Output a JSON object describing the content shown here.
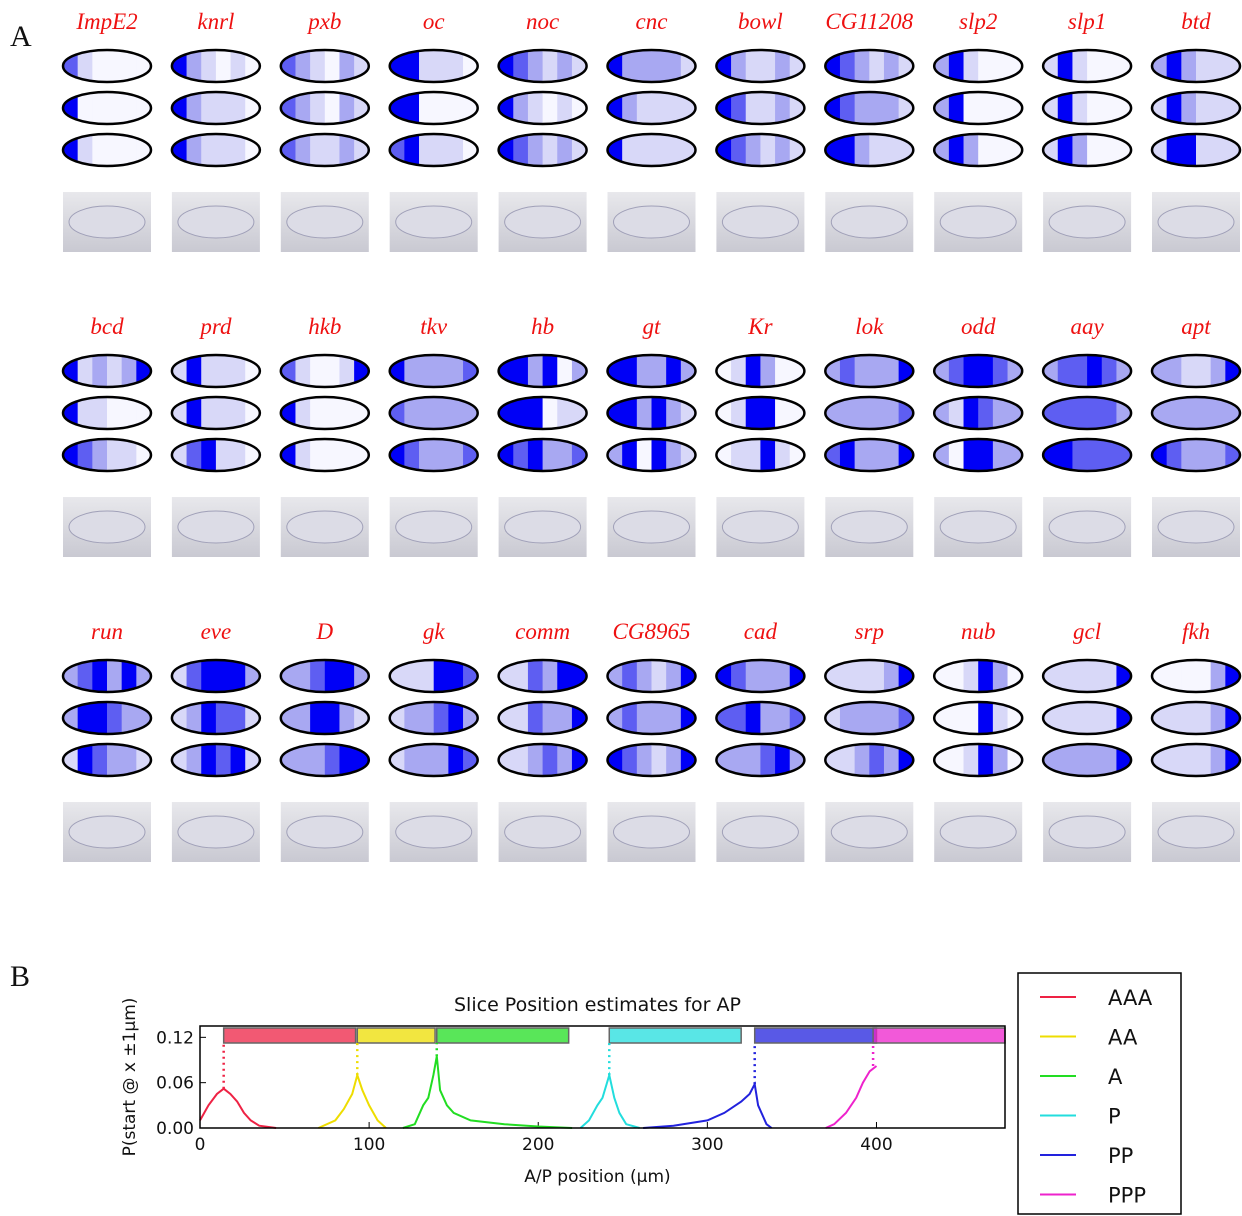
{
  "chart_data": [
    {
      "type": "embryo-grid",
      "label": "A",
      "genes": [
        {
          "name": "ImpE2",
          "slices": [
            [
              3,
              1,
              0,
              0,
              0,
              0
            ],
            [
              4,
              0,
              0,
              0,
              0,
              0
            ],
            [
              4,
              1,
              0,
              0,
              0,
              0
            ]
          ]
        },
        {
          "name": "knrl",
          "slices": [
            [
              4,
              2,
              1,
              0,
              1,
              0
            ],
            [
              4,
              2,
              1,
              1,
              1,
              0
            ],
            [
              4,
              2,
              1,
              1,
              1,
              0
            ]
          ]
        },
        {
          "name": "pxb",
          "slices": [
            [
              3,
              2,
              1,
              0,
              2,
              1
            ],
            [
              3,
              2,
              1,
              0,
              2,
              1
            ],
            [
              3,
              2,
              1,
              1,
              2,
              1
            ]
          ]
        },
        {
          "name": "oc",
          "slices": [
            [
              4,
              4,
              1,
              1,
              1,
              0
            ],
            [
              4,
              4,
              0,
              0,
              0,
              0
            ],
            [
              3,
              4,
              1,
              1,
              1,
              0
            ]
          ]
        },
        {
          "name": "noc",
          "slices": [
            [
              4,
              3,
              2,
              1,
              2,
              1
            ],
            [
              4,
              2,
              1,
              0,
              1,
              0
            ],
            [
              4,
              3,
              2,
              1,
              2,
              1
            ]
          ]
        },
        {
          "name": "cnc",
          "slices": [
            [
              4,
              2,
              2,
              2,
              2,
              1
            ],
            [
              4,
              2,
              1,
              1,
              1,
              1
            ],
            [
              4,
              1,
              1,
              1,
              1,
              1
            ]
          ]
        },
        {
          "name": "bowl",
          "slices": [
            [
              4,
              2,
              1,
              1,
              2,
              1
            ],
            [
              4,
              3,
              1,
              1,
              2,
              1
            ],
            [
              4,
              3,
              2,
              1,
              2,
              1
            ]
          ]
        },
        {
          "name": "CG11208",
          "slices": [
            [
              4,
              3,
              2,
              1,
              2,
              1
            ],
            [
              4,
              3,
              2,
              2,
              2,
              1
            ],
            [
              4,
              4,
              2,
              1,
              1,
              1
            ]
          ]
        },
        {
          "name": "slp2",
          "slices": [
            [
              2,
              4,
              1,
              0,
              0,
              0
            ],
            [
              2,
              4,
              0,
              0,
              0,
              0
            ],
            [
              2,
              4,
              2,
              0,
              0,
              0
            ]
          ]
        },
        {
          "name": "slp1",
          "slices": [
            [
              1,
              4,
              1,
              0,
              0,
              0
            ],
            [
              1,
              4,
              1,
              0,
              0,
              0
            ],
            [
              1,
              4,
              2,
              0,
              0,
              0
            ]
          ]
        },
        {
          "name": "btd",
          "slices": [
            [
              2,
              4,
              2,
              1,
              1,
              1
            ],
            [
              1,
              4,
              2,
              1,
              1,
              1
            ],
            [
              1,
              4,
              4,
              1,
              1,
              1
            ]
          ]
        },
        {
          "name": "bcd",
          "slices": [
            [
              4,
              1,
              2,
              1,
              2,
              4
            ],
            [
              4,
              1,
              1,
              0,
              0,
              0
            ],
            [
              4,
              3,
              2,
              1,
              1,
              0
            ]
          ]
        },
        {
          "name": "prd",
          "slices": [
            [
              1,
              4,
              1,
              1,
              1,
              0
            ],
            [
              1,
              4,
              1,
              1,
              1,
              0
            ],
            [
              1,
              3,
              4,
              1,
              1,
              0
            ]
          ]
        },
        {
          "name": "hkb",
          "slices": [
            [
              3,
              1,
              0,
              0,
              1,
              4
            ],
            [
              4,
              1,
              0,
              0,
              0,
              0
            ],
            [
              4,
              1,
              0,
              0,
              0,
              0
            ]
          ]
        },
        {
          "name": "tkv",
          "slices": [
            [
              4,
              2,
              2,
              2,
              2,
              3
            ],
            [
              3,
              2,
              2,
              2,
              2,
              2
            ],
            [
              4,
              3,
              2,
              2,
              2,
              3
            ]
          ]
        },
        {
          "name": "hb",
          "slices": [
            [
              4,
              4,
              2,
              4,
              0,
              2
            ],
            [
              4,
              4,
              4,
              0,
              1,
              1
            ],
            [
              4,
              3,
              4,
              2,
              2,
              3
            ]
          ]
        },
        {
          "name": "gt",
          "slices": [
            [
              4,
              4,
              2,
              2,
              4,
              2
            ],
            [
              4,
              4,
              2,
              4,
              2,
              1
            ],
            [
              2,
              4,
              0,
              4,
              2,
              1
            ]
          ]
        },
        {
          "name": "Kr",
          "slices": [
            [
              0,
              1,
              4,
              2,
              0,
              0
            ],
            [
              0,
              1,
              4,
              4,
              0,
              0
            ],
            [
              0,
              1,
              1,
              4,
              1,
              0
            ]
          ]
        },
        {
          "name": "lok",
          "slices": [
            [
              2,
              3,
              2,
              2,
              2,
              4
            ],
            [
              2,
              2,
              2,
              2,
              2,
              3
            ],
            [
              3,
              4,
              2,
              2,
              2,
              4
            ]
          ]
        },
        {
          "name": "odd",
          "slices": [
            [
              2,
              3,
              4,
              4,
              3,
              2
            ],
            [
              2,
              1,
              4,
              3,
              2,
              2
            ],
            [
              2,
              0,
              4,
              4,
              2,
              2
            ]
          ]
        },
        {
          "name": "aay",
          "slices": [
            [
              2,
              3,
              3,
              4,
              3,
              2
            ],
            [
              3,
              3,
              3,
              3,
              3,
              2
            ],
            [
              4,
              4,
              3,
              3,
              3,
              3
            ]
          ]
        },
        {
          "name": "apt",
          "slices": [
            [
              2,
              2,
              1,
              1,
              2,
              4
            ],
            [
              2,
              2,
              2,
              2,
              2,
              2
            ],
            [
              4,
              3,
              2,
              2,
              2,
              3
            ]
          ]
        },
        {
          "name": "run",
          "slices": [
            [
              2,
              3,
              4,
              2,
              4,
              2
            ],
            [
              2,
              4,
              4,
              3,
              2,
              2
            ],
            [
              1,
              4,
              3,
              2,
              2,
              1
            ]
          ]
        },
        {
          "name": "eve",
          "slices": [
            [
              1,
              3,
              4,
              4,
              4,
              2
            ],
            [
              1,
              2,
              4,
              3,
              3,
              1
            ],
            [
              1,
              2,
              4,
              3,
              4,
              1
            ]
          ]
        },
        {
          "name": "D",
          "slices": [
            [
              2,
              2,
              3,
              4,
              4,
              2
            ],
            [
              2,
              2,
              4,
              4,
              2,
              1
            ],
            [
              2,
              2,
              2,
              3,
              4,
              4
            ]
          ]
        },
        {
          "name": "gk",
          "slices": [
            [
              1,
              1,
              1,
              4,
              4,
              3
            ],
            [
              1,
              2,
              2,
              3,
              4,
              2
            ],
            [
              1,
              2,
              2,
              2,
              4,
              3
            ]
          ]
        },
        {
          "name": "comm",
          "slices": [
            [
              1,
              1,
              3,
              2,
              4,
              4
            ],
            [
              1,
              1,
              3,
              2,
              2,
              4
            ],
            [
              1,
              1,
              2,
              3,
              2,
              4
            ]
          ]
        },
        {
          "name": "CG8965",
          "slices": [
            [
              2,
              3,
              2,
              1,
              2,
              4
            ],
            [
              2,
              3,
              2,
              2,
              2,
              4
            ],
            [
              4,
              3,
              2,
              1,
              2,
              4
            ]
          ]
        },
        {
          "name": "cad",
          "slices": [
            [
              4,
              3,
              2,
              2,
              2,
              4
            ],
            [
              3,
              3,
              4,
              2,
              2,
              3
            ],
            [
              2,
              2,
              2,
              3,
              4,
              2
            ]
          ]
        },
        {
          "name": "srp",
          "slices": [
            [
              1,
              1,
              1,
              1,
              2,
              4
            ],
            [
              1,
              2,
              2,
              2,
              2,
              3
            ],
            [
              1,
              1,
              2,
              3,
              2,
              4
            ]
          ]
        },
        {
          "name": "nub",
          "slices": [
            [
              0,
              0,
              1,
              4,
              2,
              0
            ],
            [
              0,
              0,
              0,
              4,
              1,
              0
            ],
            [
              0,
              0,
              1,
              4,
              2,
              0
            ]
          ]
        },
        {
          "name": "gcl",
          "slices": [
            [
              1,
              1,
              1,
              1,
              1,
              4
            ],
            [
              1,
              1,
              1,
              1,
              1,
              4
            ],
            [
              2,
              2,
              2,
              2,
              2,
              4
            ]
          ]
        },
        {
          "name": "fkh",
          "slices": [
            [
              0,
              0,
              0,
              0,
              2,
              4
            ],
            [
              1,
              1,
              1,
              1,
              2,
              4
            ],
            [
              1,
              1,
              1,
              1,
              2,
              4
            ]
          ]
        }
      ]
    },
    {
      "type": "line",
      "label": "B",
      "title": "Slice Position estimates for AP",
      "ylabel": "P(start @ x ±1μm)",
      "xlabel": "A/P position (μm)",
      "xlim": [
        0,
        476
      ],
      "ylim": [
        0,
        0.135
      ],
      "xticks": [
        0,
        100,
        200,
        300,
        400
      ],
      "yticks": [
        {
          "value": 0,
          "label": "0.00"
        },
        {
          "value": 0.06,
          "label": "0.06"
        },
        {
          "value": 0.12,
          "label": "0.12"
        }
      ],
      "series": [
        {
          "name": "AAA",
          "color": "#ee2244",
          "range": [
            14,
            92
          ],
          "x": [
            0,
            5,
            10,
            14,
            18,
            22,
            26,
            30,
            35,
            45
          ],
          "values": [
            0.01,
            0.03,
            0.045,
            0.052,
            0.045,
            0.035,
            0.02,
            0.01,
            0.003,
            0
          ]
        },
        {
          "name": "AA",
          "color": "#eedd00",
          "range": [
            93,
            139
          ],
          "x": [
            70,
            80,
            85,
            90,
            93,
            96,
            100,
            105,
            110
          ],
          "values": [
            0,
            0.01,
            0.025,
            0.045,
            0.07,
            0.05,
            0.03,
            0.01,
            0
          ]
        },
        {
          "name": "A",
          "color": "#22dd22",
          "range": [
            140,
            218
          ],
          "x": [
            120,
            127,
            132,
            135,
            138,
            140,
            142,
            146,
            150,
            160,
            180,
            200,
            220
          ],
          "values": [
            0,
            0.005,
            0.03,
            0.04,
            0.07,
            0.095,
            0.05,
            0.03,
            0.02,
            0.01,
            0.005,
            0.002,
            0
          ]
        },
        {
          "name": "P",
          "color": "#22dddd",
          "range": [
            242,
            320
          ],
          "x": [
            225,
            230,
            235,
            238,
            242,
            245,
            248,
            252,
            260
          ],
          "values": [
            0,
            0.01,
            0.03,
            0.04,
            0.07,
            0.04,
            0.02,
            0.005,
            0
          ]
        },
        {
          "name": "PP",
          "color": "#2222dd",
          "range": [
            328,
            400
          ],
          "x": [
            262,
            280,
            300,
            310,
            320,
            325,
            328,
            330,
            335,
            338
          ],
          "values": [
            0,
            0.003,
            0.01,
            0.02,
            0.035,
            0.045,
            0.058,
            0.03,
            0.005,
            0
          ]
        },
        {
          "name": "PPP",
          "color": "#ee22cc",
          "range": [
            398,
            476
          ],
          "x": [
            370,
            375,
            382,
            388,
            392,
            396,
            400
          ],
          "values": [
            0,
            0.005,
            0.02,
            0.04,
            0.06,
            0.075,
            0.082
          ]
        }
      ]
    }
  ]
}
